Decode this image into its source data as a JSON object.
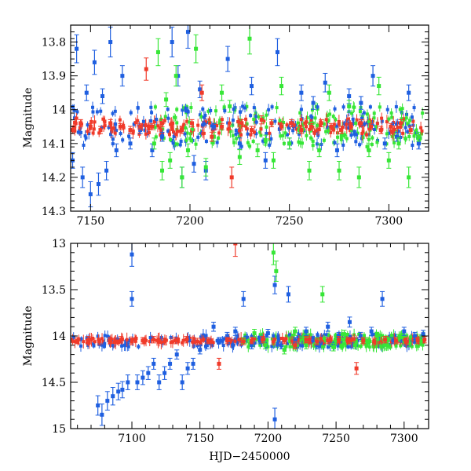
{
  "chart_data": [
    {
      "type": "scatter",
      "panel": "top",
      "title": "",
      "xlabel": "",
      "ylabel": "Magnitude",
      "xlim": [
        7140,
        7320
      ],
      "ylim": [
        14.3,
        13.75
      ],
      "x_ticks": [
        7150,
        7200,
        7250,
        7300
      ],
      "x_tick_labels": [
        "7150",
        "7200",
        "7250",
        "7300"
      ],
      "y_ticks": [
        13.8,
        13.9,
        14.0,
        14.1,
        14.2,
        14.3
      ],
      "y_tick_labels": [
        "13.8",
        "13.9",
        "14",
        "14.1",
        "14.2",
        "14.3"
      ],
      "series": [
        {
          "name": "blue",
          "color": "#1f5fe0",
          "x": [
            7141,
            7143,
            7146,
            7148,
            7150,
            7152,
            7154,
            7156,
            7158,
            7160,
            7163,
            7166,
            7170,
            7175,
            7181,
            7186,
            7191,
            7194,
            7196,
            7199,
            7202,
            7205,
            7208,
            7212,
            7219,
            7225,
            7231,
            7238,
            7244,
            7250,
            7256,
            7262,
            7268,
            7274,
            7280,
            7286,
            7292,
            7298,
            7304,
            7310,
            7315
          ],
          "y": [
            14.15,
            13.82,
            14.2,
            13.95,
            14.25,
            13.86,
            14.22,
            13.96,
            14.18,
            13.8,
            14.12,
            13.9,
            14.1,
            14.06,
            14.12,
            14.08,
            13.8,
            13.9,
            14.2,
            13.77,
            14.16,
            13.94,
            14.18,
            14.05,
            13.85,
            14.1,
            13.93,
            14.15,
            13.83,
            14.1,
            13.95,
            13.98,
            13.92,
            14.12,
            13.96,
            13.98,
            13.9,
            14.1,
            14.08,
            13.95,
            14.1
          ]
        },
        {
          "name": "green",
          "color": "#37e637",
          "x": [
            7182,
            7184,
            7186,
            7188,
            7190,
            7193,
            7196,
            7199,
            7203,
            7208,
            7212,
            7216,
            7220,
            7225,
            7230,
            7234,
            7238,
            7242,
            7246,
            7250,
            7255,
            7260,
            7265,
            7270,
            7275,
            7280,
            7285,
            7290,
            7295,
            7300,
            7305,
            7310,
            7315
          ],
          "y": [
            14.1,
            13.83,
            14.18,
            13.97,
            14.15,
            13.9,
            14.2,
            14.12,
            13.82,
            14.17,
            14.08,
            13.95,
            13.99,
            14.14,
            13.79,
            14.12,
            14.09,
            14.15,
            13.93,
            14.1,
            14.06,
            14.18,
            14.12,
            13.95,
            14.18,
            13.99,
            14.2,
            14.12,
            13.93,
            14.15,
            14.1,
            14.2,
            14.08
          ]
        },
        {
          "name": "red",
          "color": "#f03a2a",
          "x": [
            7141,
            7145,
            7150,
            7155,
            7160,
            7165,
            7170,
            7175,
            7178,
            7181,
            7186,
            7191,
            7196,
            7201,
            7206,
            7211,
            7216,
            7221,
            7226,
            7231,
            7236,
            7241,
            7246,
            7251,
            7256,
            7261,
            7266,
            7271,
            7276,
            7281,
            7286,
            7291,
            7296,
            7301,
            7306,
            7311
          ],
          "y": [
            14.06,
            14.04,
            14.05,
            14.06,
            14.04,
            14.05,
            14.06,
            14.05,
            13.88,
            14.05,
            14.04,
            14.05,
            14.06,
            14.04,
            13.95,
            14.08,
            14.05,
            14.2,
            14.04,
            14.06,
            14.03,
            14.04,
            14.05,
            14.04,
            14.06,
            14.05,
            14.04,
            14.05,
            14.06,
            14.05,
            14.04,
            14.05,
            14.06,
            14.05,
            14.04,
            14.06
          ]
        }
      ]
    },
    {
      "type": "scatter",
      "panel": "bottom",
      "title": "",
      "xlabel": "HJD−2450000",
      "ylabel": "Magnitude",
      "xlim": [
        7055,
        7318
      ],
      "ylim": [
        15.0,
        13.0
      ],
      "x_ticks": [
        7100,
        7150,
        7200,
        7250,
        7300
      ],
      "x_tick_labels": [
        "7100",
        "7150",
        "7200",
        "7250",
        "7300"
      ],
      "y_ticks": [
        13.0,
        13.5,
        14.0,
        14.5,
        15.0
      ],
      "y_tick_labels": [
        "13",
        "13.5",
        "14",
        "14.5",
        "15"
      ],
      "series": [
        {
          "name": "blue",
          "color": "#1f5fe0",
          "x": [
            7075,
            7078,
            7082,
            7086,
            7090,
            7093,
            7097,
            7100,
            7100,
            7104,
            7108,
            7112,
            7116,
            7120,
            7124,
            7128,
            7133,
            7137,
            7141,
            7145,
            7150,
            7155,
            7160,
            7165,
            7170,
            7176,
            7182,
            7188,
            7194,
            7200,
            7205,
            7205,
            7210,
            7215,
            7220,
            7228,
            7236,
            7244,
            7252,
            7260,
            7268,
            7276,
            7284,
            7292,
            7300,
            7308,
            7314
          ],
          "y": [
            14.75,
            14.85,
            14.7,
            14.65,
            14.6,
            14.58,
            14.5,
            13.12,
            13.6,
            14.5,
            14.45,
            14.4,
            14.3,
            14.5,
            14.4,
            14.3,
            14.2,
            14.5,
            14.35,
            14.3,
            14.15,
            14.1,
            13.9,
            14.05,
            14.0,
            13.95,
            13.6,
            14.1,
            14.05,
            13.97,
            14.9,
            13.45,
            14.1,
            13.55,
            14.05,
            13.95,
            14.1,
            13.9,
            14.0,
            13.85,
            14.0,
            13.95,
            13.6,
            14.05,
            13.95,
            14.0,
            13.98
          ]
        },
        {
          "name": "green",
          "color": "#37e637",
          "x": [
            7182,
            7190,
            7198,
            7204,
            7206,
            7212,
            7220,
            7228,
            7236,
            7240,
            7248,
            7256,
            7264,
            7272,
            7280,
            7288,
            7296,
            7304,
            7312
          ],
          "y": [
            14.05,
            13.97,
            14.1,
            13.1,
            13.3,
            14.15,
            13.95,
            14.1,
            14.05,
            13.55,
            14.12,
            13.98,
            14.1,
            14.05,
            14.0,
            14.1,
            14.02,
            14.08,
            14.05
          ]
        },
        {
          "name": "red",
          "color": "#f03a2a",
          "x": [
            7060,
            7068,
            7076,
            7084,
            7092,
            7100,
            7108,
            7116,
            7124,
            7132,
            7140,
            7148,
            7156,
            7164,
            7170,
            7176,
            7182,
            7188,
            7196,
            7204,
            7212,
            7220,
            7228,
            7236,
            7244,
            7252,
            7260,
            7265,
            7270,
            7278,
            7286,
            7294,
            7302,
            7310,
            7315
          ],
          "y": [
            14.05,
            14.04,
            14.06,
            14.05,
            14.04,
            14.06,
            14.05,
            14.04,
            14.06,
            14.05,
            14.04,
            14.06,
            14.05,
            14.3,
            14.05,
            13.0,
            14.06,
            14.05,
            14.04,
            14.06,
            14.05,
            14.1,
            14.04,
            14.06,
            14.05,
            14.04,
            14.05,
            14.35,
            14.05,
            14.06,
            14.04,
            14.05,
            14.06,
            14.05,
            14.04
          ]
        }
      ]
    }
  ]
}
